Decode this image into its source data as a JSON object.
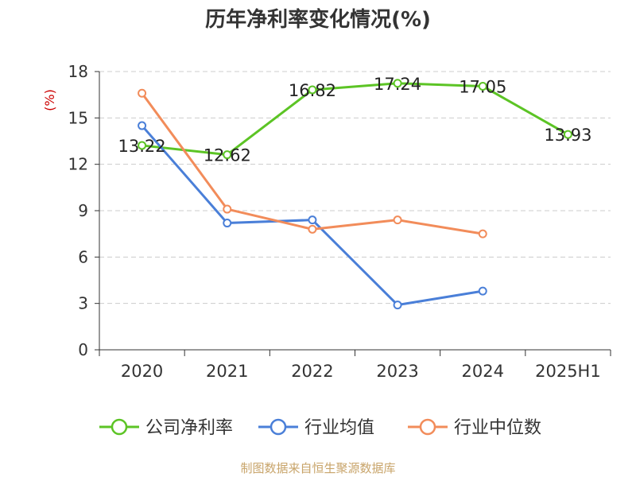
{
  "chart_data": {
    "type": "line",
    "title": "历年净利率变化情况(%)",
    "ylabel": "(%)",
    "categories": [
      "2020",
      "2021",
      "2022",
      "2023",
      "2024",
      "2025H1"
    ],
    "ylim": [
      0,
      18
    ],
    "yticks": [
      0,
      3,
      6,
      9,
      12,
      15,
      18
    ],
    "grid": true,
    "legend_position": "bottom",
    "series": [
      {
        "name": "公司净利率",
        "color": "#5cc425",
        "values": [
          13.22,
          12.62,
          16.82,
          17.24,
          17.05,
          13.93
        ],
        "labels": [
          "13.22",
          "12.62",
          "16.82",
          "17.24",
          "17.05",
          "13.93"
        ]
      },
      {
        "name": "行业均值",
        "color": "#4a7fd8",
        "values": [
          14.5,
          8.2,
          8.4,
          2.9,
          3.8,
          null
        ]
      },
      {
        "name": "行业中位数",
        "color": "#f28c5a",
        "values": [
          16.6,
          9.1,
          7.8,
          8.4,
          7.5,
          null
        ]
      }
    ]
  },
  "footer": {
    "source": "制图数据来自恒生聚源数据库"
  },
  "colors": {
    "axis": "#333333",
    "grid": "#cccccc",
    "ylabel": "#cc0000",
    "source": "#c8a46a"
  }
}
